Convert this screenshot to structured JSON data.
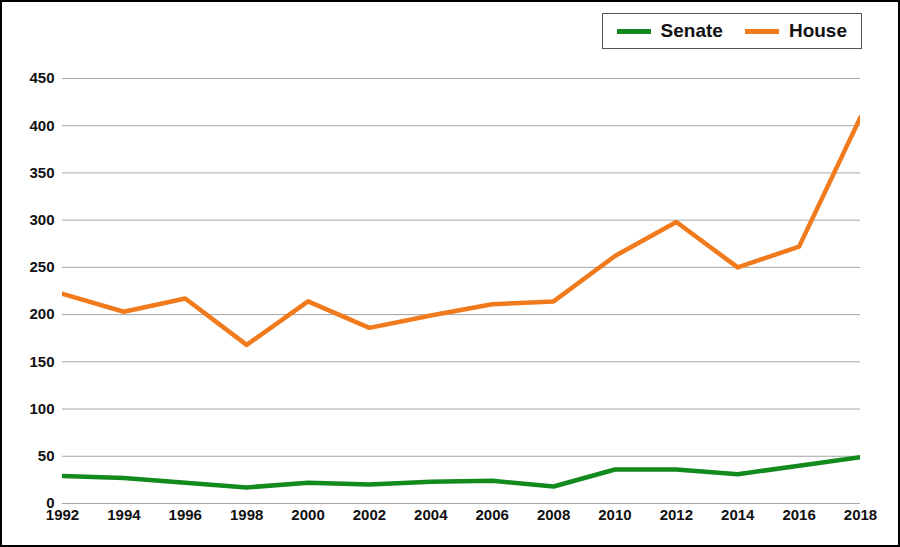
{
  "chart_data": {
    "type": "line",
    "x": [
      1992,
      1994,
      1996,
      1998,
      2000,
      2002,
      2004,
      2006,
      2008,
      2010,
      2012,
      2014,
      2016,
      2018
    ],
    "series": [
      {
        "name": "Senate",
        "color": "#138a1e",
        "values": [
          29,
          27,
          22,
          17,
          22,
          20,
          23,
          24,
          18,
          36,
          36,
          31,
          40,
          49
        ]
      },
      {
        "name": "House",
        "color": "#f07a1c",
        "values": [
          222,
          203,
          217,
          168,
          214,
          186,
          199,
          211,
          214,
          262,
          298,
          250,
          272,
          409
        ]
      }
    ],
    "xlim": [
      1992,
      2018
    ],
    "xticks": [
      1992,
      1994,
      1996,
      1998,
      2000,
      2002,
      2004,
      2006,
      2008,
      2010,
      2012,
      2014,
      2016,
      2018
    ],
    "ylim": [
      0,
      450
    ],
    "yticks": [
      0,
      50,
      100,
      150,
      200,
      250,
      300,
      350,
      400,
      450
    ],
    "grid": true,
    "legend": "top-right"
  }
}
